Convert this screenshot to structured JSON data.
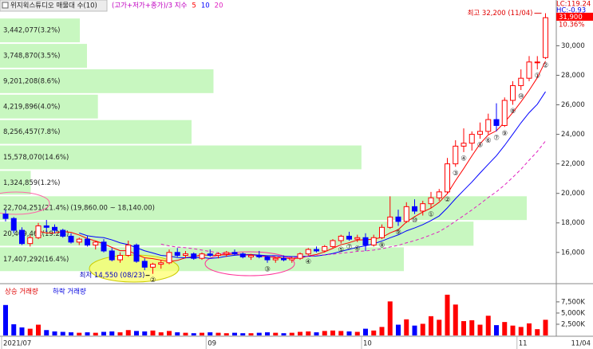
{
  "chart_data": {
    "type": "candlestick",
    "title": "위지윅스튜디오 매물대 수(10)",
    "ma_label": "(고가+저가+종가)/3 지수",
    "lc": "LC:119.24",
    "hc": "HC:-0.93",
    "price_box": {
      "price": "31,900",
      "change": "10.36%"
    },
    "annotations": {
      "low": "최저 14,550 (08/23)",
      "high": "최고 32,200 (11/04)"
    },
    "last_date": "11/04",
    "up_color": "#ff0000",
    "down_color": "#0000ff",
    "ylim": [
      14100,
      33100
    ],
    "yticks": [
      {
        "value": 16000,
        "label": "16,000"
      },
      {
        "value": 18000,
        "label": "18,000"
      },
      {
        "value": 20000,
        "label": "20,000"
      },
      {
        "value": 22000,
        "label": "22,000"
      },
      {
        "value": 24000,
        "label": "24,000"
      },
      {
        "value": 26000,
        "label": "26,000"
      },
      {
        "value": 28000,
        "label": "28,000"
      },
      {
        "value": 30000,
        "label": "30,000"
      }
    ],
    "categories": [
      "2021/07",
      null,
      null,
      null,
      null,
      null,
      null,
      null,
      null,
      null,
      null,
      null,
      null,
      null,
      null,
      null,
      null,
      null,
      null,
      null,
      null,
      null,
      null,
      null,
      null,
      "09",
      null,
      null,
      null,
      null,
      null,
      null,
      null,
      null,
      null,
      null,
      null,
      null,
      null,
      null,
      null,
      null,
      null,
      null,
      "10",
      null,
      null,
      null,
      null,
      null,
      null,
      null,
      null,
      null,
      null,
      null,
      null,
      null,
      null,
      null,
      null,
      null,
      null,
      "11",
      null,
      null,
      null
    ],
    "open": [
      18600,
      18300,
      17500,
      16600,
      17000,
      17800,
      17700,
      17500,
      17100,
      16700,
      16900,
      16500,
      16700,
      16100,
      15500,
      15800,
      16500,
      15400,
      15000,
      15200,
      15300,
      16000,
      15800,
      15900,
      15600,
      15900,
      15800,
      15900,
      16000,
      15900,
      15700,
      15800,
      15700,
      15500,
      15600,
      15500,
      15600,
      15900,
      16200,
      16100,
      16400,
      16800,
      17100,
      16900,
      17000,
      16500,
      17000,
      17700,
      18400,
      18100,
      19100,
      18800,
      19300,
      19700,
      20100,
      22000,
      23200,
      23400,
      24000,
      24200,
      25000,
      24600,
      26300,
      27300,
      27800,
      28900,
      29200
    ],
    "high": [
      18900,
      18400,
      17700,
      17200,
      18000,
      18200,
      17900,
      17600,
      17300,
      17000,
      17100,
      16800,
      16900,
      16300,
      16000,
      16800,
      16600,
      15600,
      15300,
      15500,
      16200,
      16300,
      16100,
      16000,
      16000,
      16200,
      16000,
      16100,
      16200,
      16000,
      15900,
      16100,
      15800,
      15700,
      15800,
      15700,
      16000,
      16300,
      16400,
      16500,
      16900,
      17200,
      17400,
      17200,
      17300,
      17200,
      17900,
      19800,
      18900,
      19400,
      19600,
      19500,
      20100,
      20300,
      22400,
      23600,
      24400,
      24200,
      24800,
      25400,
      26100,
      26500,
      27600,
      28400,
      29300,
      29300,
      32200
    ],
    "low": [
      18100,
      17300,
      16500,
      16400,
      16900,
      17400,
      17300,
      17000,
      16600,
      16500,
      16400,
      16200,
      16000,
      15400,
      15300,
      15700,
      15300,
      14800,
      14550,
      14900,
      15200,
      15700,
      15600,
      15500,
      15500,
      15700,
      15600,
      15700,
      15800,
      15600,
      15500,
      15600,
      15300,
      15300,
      15400,
      15300,
      15500,
      15800,
      16000,
      16000,
      16300,
      16600,
      16800,
      16700,
      16100,
      16400,
      16900,
      17600,
      17800,
      18000,
      18600,
      18500,
      19000,
      19500,
      20000,
      21800,
      22800,
      22900,
      23700,
      24000,
      24200,
      24500,
      26000,
      27000,
      27600,
      28400,
      29100
    ],
    "close": [
      18300,
      17500,
      16600,
      17000,
      17800,
      17700,
      17500,
      17100,
      16700,
      16900,
      16500,
      16700,
      16100,
      15500,
      15800,
      16500,
      15400,
      15000,
      15200,
      15300,
      16000,
      15800,
      15900,
      15600,
      15900,
      15800,
      15900,
      16000,
      15900,
      15700,
      15800,
      15700,
      15500,
      15600,
      15500,
      15600,
      15900,
      16200,
      16100,
      16400,
      16800,
      17100,
      16900,
      17000,
      16500,
      17000,
      17700,
      18400,
      18100,
      19100,
      18800,
      19300,
      19700,
      20100,
      22000,
      23200,
      23400,
      24000,
      24200,
      25000,
      24600,
      26300,
      27300,
      27800,
      28900,
      28900,
      31900
    ],
    "marker_labels": [
      null,
      null,
      null,
      null,
      null,
      null,
      null,
      null,
      null,
      null,
      null,
      null,
      null,
      null,
      null,
      null,
      null,
      null,
      "②",
      null,
      null,
      null,
      null,
      null,
      null,
      null,
      null,
      null,
      null,
      null,
      null,
      null,
      "③",
      null,
      null,
      null,
      null,
      "④",
      null,
      null,
      null,
      "⑤",
      "⑦",
      "⑥",
      null,
      null,
      "⑧",
      null,
      "⑨",
      null,
      "⑩",
      null,
      "①",
      null,
      "②",
      "③",
      "④",
      null,
      "⑤",
      "⑥",
      "⑦",
      "⑨",
      "⑧",
      "⑩",
      null,
      "①",
      "②"
    ],
    "moving_averages": [
      {
        "name": "5",
        "color": "#ff0000",
        "dashed": false,
        "values": [
          null,
          null,
          null,
          null,
          17440,
          17320,
          17320,
          17420,
          17360,
          17180,
          16940,
          16780,
          16580,
          16340,
          16120,
          16120,
          15860,
          15640,
          15580,
          15480,
          15380,
          15460,
          15640,
          15720,
          15840,
          15800,
          15820,
          15840,
          15900,
          15860,
          15860,
          15820,
          15720,
          15660,
          15620,
          15580,
          15620,
          15760,
          15860,
          16040,
          16280,
          16520,
          16660,
          16840,
          16860,
          16900,
          17020,
          17320,
          17540,
          18060,
          18420,
          18740,
          19000,
          19400,
          19980,
          20860,
          21680,
          22540,
          23360,
          23960,
          24240,
          24820,
          25480,
          26200,
          26980,
          27840,
          28960
        ]
      },
      {
        "name": "10",
        "color": "#0000ff",
        "dashed": false,
        "values": [
          null,
          null,
          null,
          null,
          null,
          null,
          null,
          null,
          null,
          17310,
          17130,
          17050,
          17000,
          16850,
          16650,
          16530,
          16320,
          16110,
          15960,
          15800,
          15750,
          15660,
          15640,
          15650,
          15660,
          15590,
          15640,
          15740,
          15810,
          15850,
          15830,
          15820,
          15780,
          15780,
          15740,
          15720,
          15720,
          15740,
          15760,
          15830,
          15930,
          16070,
          16210,
          16350,
          16450,
          16590,
          16770,
          16990,
          17190,
          17460,
          17660,
          17880,
          18160,
          18470,
          19020,
          19640,
          20210,
          20770,
          21380,
          21970,
          22550,
          23250,
          24010,
          24780,
          25470,
          26040,
          26890
        ]
      },
      {
        "name": "20",
        "color": "#e020c0",
        "dashed": true,
        "values": [
          null,
          null,
          null,
          null,
          null,
          null,
          null,
          null,
          null,
          null,
          null,
          null,
          null,
          null,
          null,
          null,
          null,
          null,
          null,
          16560,
          16440,
          16360,
          16320,
          16250,
          16160,
          16060,
          15980,
          15930,
          15890,
          15830,
          15790,
          15740,
          15710,
          15720,
          15700,
          15660,
          15680,
          15740,
          15790,
          15840,
          15880,
          15950,
          16000,
          16070,
          16100,
          16160,
          16250,
          16370,
          16480,
          16650,
          16800,
          16980,
          17190,
          17410,
          17740,
          18120,
          18490,
          18880,
          19290,
          19720,
          20110,
          20570,
          21090,
          21630,
          22250,
          22840,
          23550
        ]
      }
    ],
    "volume_profile": {
      "color": "#c8f7c0",
      "bins": [
        14680,
        16400,
        18140,
        19860,
        21580,
        23300,
        25020,
        26740,
        28460,
        30180,
        31900
      ],
      "values": [
        17407292,
        20409461,
        22704251,
        1324859,
        15578070,
        8256457,
        4219896,
        9201208,
        3748870,
        3442077
      ],
      "value_labels": [
        "17,407,292(16.4%)",
        "20,409,461(19.2%)",
        "22,704,251(21.4%)",
        "1,324,859(1.2%)",
        "15,578,070(14.6%)",
        "8,256,457(7.8%)",
        "4,219,896(4.0%)",
        "9,201,208(8.6%)",
        "3,748,870(3.5%)",
        "3,442,077(3.2%)"
      ],
      "range_label": "(19,860.00 ~ 18,140.00)"
    },
    "volume": {
      "up_name": "상승 거래량",
      "down_name": "하락 거래량",
      "ylim": [
        0,
        10500
      ],
      "yticks": [
        {
          "value": 2500,
          "label": "2,500K"
        },
        {
          "value": 5000,
          "label": "5,000K"
        },
        {
          "value": 7500,
          "label": "7,500K"
        }
      ],
      "values": [
        6800,
        2500,
        1800,
        1500,
        2400,
        1200,
        900,
        800,
        700,
        600,
        700,
        600,
        800,
        900,
        700,
        1200,
        1000,
        900,
        1100,
        700,
        1000,
        700,
        600,
        500,
        600,
        700,
        600,
        500,
        600,
        500,
        500,
        600,
        700,
        600,
        500,
        600,
        800,
        900,
        700,
        1000,
        1100,
        1000,
        900,
        800,
        1500,
        1100,
        1900,
        7600,
        2400,
        3600,
        2200,
        2600,
        4300,
        3500,
        9100,
        6900,
        3200,
        3400,
        2400,
        4400,
        2300,
        3000,
        2200,
        1900,
        2700,
        1400,
        3500
      ]
    }
  }
}
